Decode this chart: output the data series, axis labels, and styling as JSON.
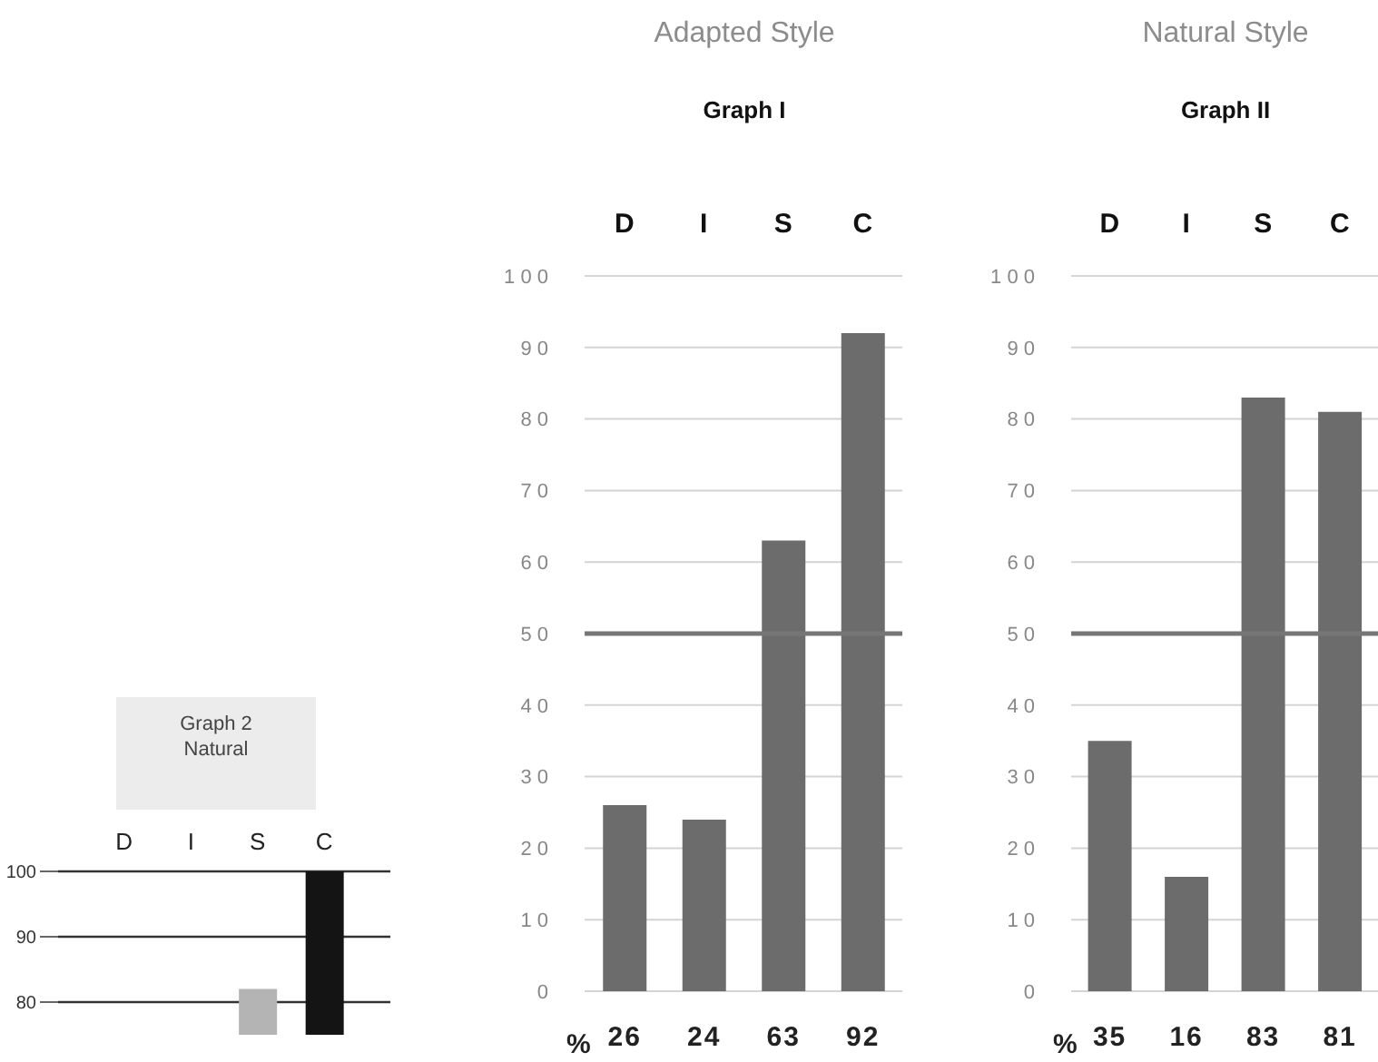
{
  "chart_data": [
    {
      "type": "bar",
      "title": "Adapted Style",
      "subtitle": "Graph I",
      "categories": [
        "D",
        "I",
        "S",
        "C"
      ],
      "values": [
        26,
        24,
        63,
        92
      ],
      "color": "#6c6c6c",
      "ylim": [
        0,
        100
      ],
      "yticks": [
        0,
        10,
        20,
        30,
        40,
        50,
        60,
        70,
        80,
        90,
        100
      ],
      "grid": "y",
      "ref_lines": [
        {
          "axis": "y",
          "value": 50,
          "color": "#767676"
        }
      ],
      "data_labels": true,
      "annotations": [
        "%"
      ]
    },
    {
      "type": "bar",
      "title": "Natural Style",
      "subtitle": "Graph II",
      "categories": [
        "D",
        "I",
        "S",
        "C"
      ],
      "values": [
        35,
        16,
        83,
        81
      ],
      "color": "#6c6c6c",
      "ylim": [
        0,
        100
      ],
      "yticks": [
        0,
        10,
        20,
        30,
        40,
        50,
        60,
        70,
        80,
        90,
        100
      ],
      "grid": "y",
      "ref_lines": [
        {
          "axis": "y",
          "value": 50,
          "color": "#767676"
        }
      ],
      "data_labels": true,
      "annotations": [
        "%"
      ]
    },
    {
      "type": "bar",
      "title": "Graph 2 Natural",
      "categories": [
        "D",
        "I",
        "S",
        "C"
      ],
      "values": [
        null,
        null,
        82,
        100
      ],
      "colors": [
        null,
        null,
        "#b4b4b4",
        "#141414"
      ],
      "ylim": [
        75,
        100
      ],
      "yticks": [
        80,
        90,
        100
      ],
      "grid": "y"
    }
  ]
}
